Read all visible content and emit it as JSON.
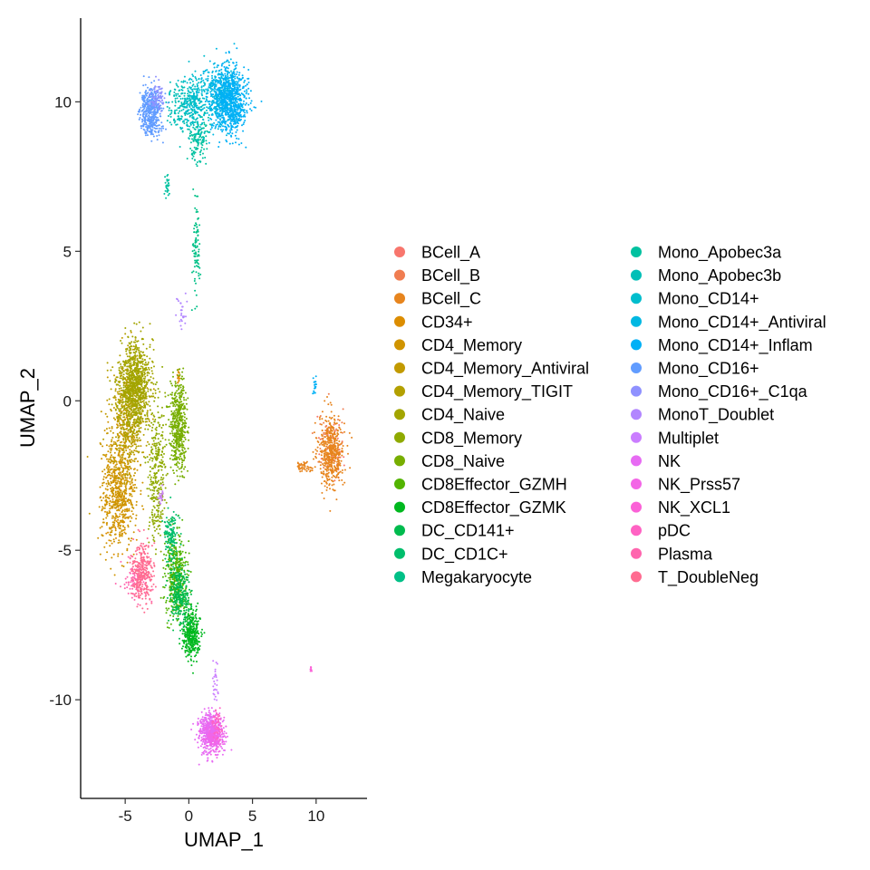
{
  "chart_data": {
    "type": "scatter",
    "title": "",
    "xlabel": "UMAP_1",
    "ylabel": "UMAP_2",
    "xlim": [
      -8.5,
      14
    ],
    "ylim": [
      -13.3,
      12.8
    ],
    "x_ticks": [
      -5,
      0,
      5,
      10
    ],
    "y_ticks": [
      -10,
      -5,
      0,
      5,
      10
    ],
    "x_tick_labels": [
      "-5",
      "0",
      "5",
      "10"
    ],
    "y_tick_labels": [
      "-10",
      "-5",
      "0",
      "5",
      "10"
    ],
    "grid": false,
    "legend_position": "right",
    "legend_columns": 2,
    "series": [
      {
        "name": "BCell_A",
        "color": "#F8766D",
        "clusters": [
          [
            11.3,
            -1.6,
            0.9,
            1.0,
            0.05
          ]
        ]
      },
      {
        "name": "BCell_B",
        "color": "#F07D51",
        "clusters": [
          [
            11.0,
            -1.3,
            1.0,
            1.1,
            0.05
          ]
        ]
      },
      {
        "name": "BCell_C",
        "color": "#E7851E",
        "clusters": [
          [
            11.2,
            -1.7,
            0.9,
            1.1,
            0.55
          ],
          [
            9.0,
            -2.2,
            0.6,
            0.15,
            0.05
          ]
        ]
      },
      {
        "name": "CD34+",
        "color": "#DC8D00",
        "clusters": [
          [
            -5.5,
            -3.8,
            1.1,
            1.3,
            0.06
          ],
          [
            -0.8,
            0.8,
            0.1,
            0.2,
            0.02
          ]
        ]
      },
      {
        "name": "CD4_Memory",
        "color": "#D09400",
        "clusters": [
          [
            -5.5,
            -3.0,
            1.2,
            1.7,
            0.7
          ]
        ]
      },
      {
        "name": "CD4_Memory_Antiviral",
        "color": "#C29A00",
        "clusters": [
          [
            -5.0,
            -1.0,
            1.3,
            1.8,
            0.35
          ]
        ]
      },
      {
        "name": "CD4_Memory_TIGIT",
        "color": "#B3A000",
        "clusters": [
          [
            -4.6,
            -0.3,
            1.2,
            1.8,
            0.4
          ]
        ]
      },
      {
        "name": "CD4_Naive",
        "color": "#A3A500",
        "clusters": [
          [
            -4.2,
            0.6,
            1.1,
            1.3,
            0.9
          ]
        ]
      },
      {
        "name": "CD8_Memory",
        "color": "#8FAA00",
        "clusters": [
          [
            -2.5,
            -2.5,
            0.6,
            2.2,
            0.35
          ]
        ]
      },
      {
        "name": "CD8_Naive",
        "color": "#77AE00",
        "clusters": [
          [
            -0.8,
            -0.8,
            0.6,
            1.3,
            0.55
          ]
        ]
      },
      {
        "name": "CD8Effector_GZMH",
        "color": "#53B400",
        "clusters": [
          [
            -1.0,
            -5.8,
            0.8,
            1.2,
            0.45
          ]
        ]
      },
      {
        "name": "CD8Effector_GZMK",
        "color": "#00B81F",
        "clusters": [
          [
            0.2,
            -7.8,
            0.6,
            0.7,
            0.4
          ]
        ]
      },
      {
        "name": "DC_CD141+",
        "color": "#00BB4E",
        "clusters": [
          [
            -0.7,
            -6.5,
            0.7,
            0.9,
            0.3
          ]
        ]
      },
      {
        "name": "DC_CD1C+",
        "color": "#00BE6C",
        "clusters": [
          [
            -1.4,
            -4.5,
            0.5,
            0.8,
            0.15
          ]
        ]
      },
      {
        "name": "Megakaryocyte",
        "color": "#00C087",
        "clusters": [
          [
            0.6,
            5.0,
            0.25,
            1.5,
            0.1
          ]
        ]
      },
      {
        "name": "Mono_Apobec3a",
        "color": "#00C1A0",
        "clusters": [
          [
            0.8,
            8.8,
            0.7,
            0.8,
            0.15
          ],
          [
            -1.7,
            7.2,
            0.15,
            0.3,
            0.03
          ]
        ]
      },
      {
        "name": "Mono_Apobec3b",
        "color": "#00BFB7",
        "clusters": [
          [
            -0.5,
            9.8,
            1.1,
            0.8,
            0.2
          ]
        ]
      },
      {
        "name": "Mono_CD14+",
        "color": "#00BDCD",
        "clusters": [
          [
            0.5,
            10.0,
            1.0,
            0.9,
            0.25
          ]
        ]
      },
      {
        "name": "Mono_CD14+_Antiviral",
        "color": "#00B8E2",
        "clusters": [
          [
            2.5,
            10.2,
            1.3,
            0.9,
            0.5
          ]
        ]
      },
      {
        "name": "Mono_CD14+_Inflam",
        "color": "#00B0F6",
        "clusters": [
          [
            3.3,
            10.0,
            1.2,
            1.0,
            0.75
          ],
          [
            9.9,
            0.5,
            0.15,
            0.3,
            0.02
          ]
        ]
      },
      {
        "name": "Mono_CD16+",
        "color": "#619CFF",
        "clusters": [
          [
            -3.0,
            9.7,
            0.8,
            0.7,
            0.5
          ]
        ]
      },
      {
        "name": "Mono_CD16+_C1qa",
        "color": "#8F91FF",
        "clusters": [
          [
            -2.5,
            10.2,
            0.5,
            0.4,
            0.08
          ]
        ]
      },
      {
        "name": "MonoT_Doublet",
        "color": "#B286FF",
        "clusters": [
          [
            -0.5,
            3.0,
            0.35,
            0.5,
            0.03
          ]
        ]
      },
      {
        "name": "Multiplet",
        "color": "#CA7DFF",
        "clusters": [
          [
            2.1,
            -9.5,
            0.2,
            0.7,
            0.03
          ],
          [
            -2.2,
            -3.2,
            0.15,
            0.3,
            0.02
          ]
        ]
      },
      {
        "name": "NK",
        "color": "#E76BF3",
        "clusters": [
          [
            1.7,
            -11.1,
            0.9,
            0.6,
            0.55
          ]
        ]
      },
      {
        "name": "NK_Prss57",
        "color": "#F365E6",
        "clusters": [
          [
            2.0,
            -11.3,
            0.7,
            0.5,
            0.15
          ]
        ]
      },
      {
        "name": "NK_XCL1",
        "color": "#FB61D7",
        "clusters": [
          [
            9.6,
            -9.0,
            0.06,
            0.1,
            0.01
          ]
        ]
      },
      {
        "name": "pDC",
        "color": "#FF62C3",
        "clusters": [
          [
            2.2,
            -10.8,
            0.4,
            0.4,
            0.05
          ]
        ]
      },
      {
        "name": "Plasma",
        "color": "#FF65AE",
        "clusters": [
          [
            -4.2,
            -6.0,
            0.8,
            0.6,
            0.1
          ]
        ]
      },
      {
        "name": "T_DoubleNeg",
        "color": "#FF6C91",
        "clusters": [
          [
            -3.7,
            -5.7,
            0.8,
            0.9,
            0.35
          ]
        ]
      }
    ]
  },
  "colors": {
    "axis": "#000000",
    "background": "#ffffff"
  }
}
